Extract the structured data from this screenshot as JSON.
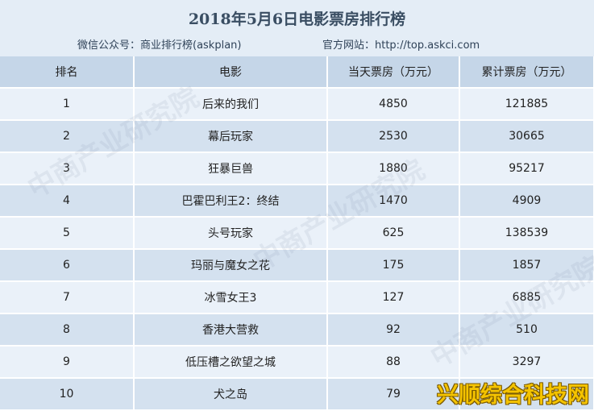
{
  "header": {
    "title": "2018年5月6日电影票房排行榜",
    "wechat": "微信公众号：商业排行榜(askplan)",
    "website": "官方网站：http://top.askci.com"
  },
  "table": {
    "columns": [
      "排名",
      "电影",
      "当天票房（万元）",
      "累计票房（万元）"
    ],
    "rows": [
      {
        "rank": "1",
        "movie": "后来的我们",
        "daily": "4850",
        "total": "121885"
      },
      {
        "rank": "2",
        "movie": "幕后玩家",
        "daily": "2530",
        "total": "30665"
      },
      {
        "rank": "3",
        "movie": "狂暴巨兽",
        "daily": "1880",
        "total": "95217"
      },
      {
        "rank": "4",
        "movie": "巴霍巴利王2：终结",
        "daily": "1470",
        "total": "4909"
      },
      {
        "rank": "5",
        "movie": "头号玩家",
        "daily": "625",
        "total": "138539"
      },
      {
        "rank": "6",
        "movie": "玛丽与魔女之花",
        "daily": "175",
        "total": "1857"
      },
      {
        "rank": "7",
        "movie": "冰雪女王3",
        "daily": "127",
        "total": "6885"
      },
      {
        "rank": "8",
        "movie": "香港大营救",
        "daily": "92",
        "total": "510"
      },
      {
        "rank": "9",
        "movie": "低压槽之欲望之城",
        "daily": "88",
        "total": "3297"
      },
      {
        "rank": "10",
        "movie": "犬之岛",
        "daily": "79",
        "total": ""
      }
    ]
  },
  "watermark": "中商产业研究院",
  "brand": "兴顺综合科技网"
}
